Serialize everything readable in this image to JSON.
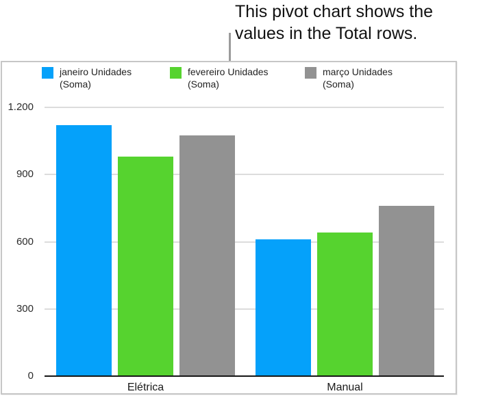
{
  "callout": {
    "text_line1": "This pivot chart shows the",
    "text_line2": "values in the Total rows."
  },
  "chart_data": {
    "type": "bar",
    "title": "",
    "xlabel": "",
    "ylabel": "",
    "categories": [
      "Elétrica",
      "Manual"
    ],
    "series": [
      {
        "name": "janeiro Unidades (Soma)",
        "color": "#05A1FA",
        "values": [
          1120,
          610
        ]
      },
      {
        "name": "fevereiro Unidades (Soma)",
        "color": "#56D32F",
        "values": [
          980,
          640
        ]
      },
      {
        "name": "março Unidades (Soma)",
        "color": "#929292",
        "values": [
          1075,
          760
        ]
      }
    ],
    "ylim": [
      0,
      1200
    ],
    "yticks": {
      "values": [
        0,
        300,
        600,
        900,
        1200
      ],
      "labels": [
        "0",
        "300",
        "600",
        "900",
        "1.200"
      ]
    },
    "grid": true,
    "legend_position": "top"
  },
  "colors": {
    "grid_line": "#dcdcdc",
    "axis_line": "#151515",
    "frame_border": "#c6c6c6",
    "callout_line": "#9b9b9b",
    "label_text": "#2b2b2b"
  }
}
